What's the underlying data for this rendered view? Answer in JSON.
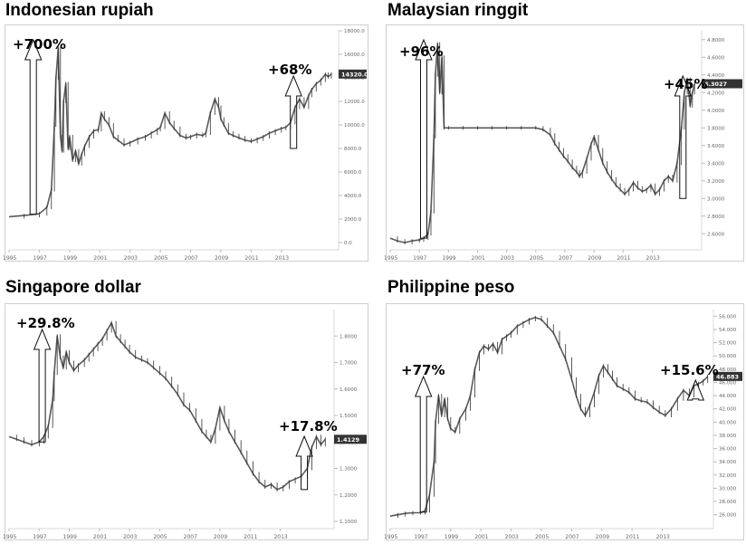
{
  "chart_data": [
    {
      "type": "line",
      "title": "Indonesian rupiah",
      "x_ticks": [
        "1995",
        "1997",
        "1999",
        "2001",
        "2003",
        "2005",
        "2007",
        "2009",
        "2011",
        "2013"
      ],
      "y_ticks": [
        "0.0",
        "2000.0",
        "4000.0",
        "6000.0",
        "8000.0",
        "10000.0",
        "12000.0",
        "14000.0",
        "16000.0",
        "18000.0"
      ],
      "ylim": [
        0,
        18000
      ],
      "last_value_label": "14320.0",
      "annotations": [
        "+700%",
        "+68%"
      ],
      "series": [
        {
          "x": [
            1995.0,
            1996.0,
            1997.0,
            1997.5,
            1997.8,
            1998.0,
            1998.1,
            1998.25,
            1998.4,
            1998.5,
            1998.6,
            1998.75,
            1998.9,
            1999.0,
            1999.2,
            1999.4,
            1999.6,
            1999.8,
            2000.0,
            2000.3,
            2000.6,
            2000.9,
            2001.1,
            2001.3,
            2001.6,
            2001.9,
            2002.2,
            2002.6,
            2003.0,
            2003.5,
            2004.0,
            2004.4,
            2004.8,
            2005.0,
            2005.3,
            2005.6,
            2005.9,
            2006.3,
            2006.7,
            2007.0,
            2007.4,
            2007.8,
            2008.0,
            2008.3,
            2008.6,
            2008.85,
            2009.0,
            2009.2,
            2009.5,
            2009.8,
            2010.2,
            2010.6,
            2011.0,
            2011.4,
            2011.8,
            2012.2,
            2012.6,
            2013.0,
            2013.3,
            2013.6,
            2013.9,
            2014.2,
            2014.5,
            2014.8,
            2015.0,
            2015.3,
            2015.6,
            2015.9,
            2016.1,
            2016.3
          ],
          "y": [
            2200,
            2300,
            2450,
            3000,
            4500,
            10000,
            14000,
            16500,
            9000,
            7800,
            12000,
            13500,
            8000,
            9000,
            7000,
            7800,
            6700,
            7500,
            8200,
            9000,
            9500,
            9600,
            11000,
            10500,
            10000,
            9000,
            8700,
            8300,
            8500,
            8800,
            9000,
            9300,
            9600,
            9800,
            11000,
            10200,
            9700,
            9100,
            8900,
            9000,
            9200,
            9100,
            9300,
            11000,
            12200,
            11500,
            10500,
            10000,
            9300,
            9100,
            8900,
            8700,
            8600,
            8800,
            9000,
            9300,
            9500,
            9700,
            9800,
            10200,
            11500,
            12200,
            11500,
            12500,
            13000,
            13500,
            13800,
            14300,
            14100,
            14320
          ]
        }
      ]
    },
    {
      "type": "line",
      "title": "Malaysian ringgit",
      "x_ticks": [
        "1995",
        "1997",
        "1999",
        "2001",
        "2003",
        "2005",
        "2007",
        "2009",
        "2011",
        "2013"
      ],
      "y_ticks": [
        "2.6000",
        "2.8000",
        "3.0000",
        "3.2000",
        "3.4000",
        "3.6000",
        "3.8000",
        "4.0000",
        "4.2000",
        "4.4000",
        "4.6000",
        "4.8000"
      ],
      "ylim": [
        2.5,
        4.9
      ],
      "last_value_label": "4.3027",
      "annotations": [
        "+96%",
        "+45%"
      ],
      "series": [
        {
          "x": [
            1995.0,
            1995.5,
            1996.0,
            1996.5,
            1997.0,
            1997.3,
            1997.6,
            1997.8,
            1998.0,
            1998.1,
            1998.25,
            1998.4,
            1998.55,
            1998.7,
            1999.0,
            2000.0,
            2001.0,
            2002.0,
            2003.0,
            2004.0,
            2005.0,
            2005.5,
            2006.0,
            2006.3,
            2006.6,
            2006.9,
            2007.2,
            2007.5,
            2007.8,
            2008.0,
            2008.2,
            2008.5,
            2008.8,
            2009.0,
            2009.3,
            2009.6,
            2009.9,
            2010.2,
            2010.5,
            2010.8,
            2011.1,
            2011.4,
            2011.7,
            2012.0,
            2012.3,
            2012.6,
            2012.9,
            2013.2,
            2013.5,
            2013.8,
            2014.1,
            2014.4,
            2014.7,
            2015.0,
            2015.2,
            2015.4,
            2015.6,
            2015.75,
            2015.9
          ],
          "y": [
            2.55,
            2.52,
            2.5,
            2.52,
            2.53,
            2.55,
            2.6,
            2.85,
            3.7,
            4.4,
            4.75,
            4.2,
            4.6,
            3.8,
            3.8,
            3.8,
            3.8,
            3.8,
            3.8,
            3.8,
            3.8,
            3.78,
            3.72,
            3.62,
            3.55,
            3.48,
            3.42,
            3.35,
            3.3,
            3.25,
            3.3,
            3.45,
            3.62,
            3.7,
            3.55,
            3.4,
            3.3,
            3.22,
            3.15,
            3.1,
            3.05,
            3.1,
            3.18,
            3.12,
            3.08,
            3.1,
            3.15,
            3.05,
            3.1,
            3.2,
            3.25,
            3.2,
            3.4,
            3.8,
            4.2,
            4.35,
            4.05,
            4.2,
            4.3
          ]
        }
      ]
    },
    {
      "type": "line",
      "title": "Singapore dollar",
      "x_ticks": [
        "1995",
        "1997",
        "1999",
        "2001",
        "2003",
        "2005",
        "2007",
        "2009",
        "2011",
        "2013"
      ],
      "y_ticks": [
        "1.1000",
        "1.2000",
        "1.3000",
        "1.4000",
        "1.5000",
        "1.6000",
        "1.7000",
        "1.8000"
      ],
      "ylim": [
        1.1,
        1.9
      ],
      "last_value_label": "1.4129",
      "annotations": [
        "+29.8%",
        "+17.8%"
      ],
      "series": [
        {
          "x": [
            1995.0,
            1995.5,
            1996.0,
            1996.5,
            1997.0,
            1997.3,
            1997.6,
            1997.9,
            1998.0,
            1998.2,
            1998.4,
            1998.6,
            1998.8,
            1999.0,
            1999.3,
            1999.6,
            2000.0,
            2000.3,
            2000.6,
            2000.9,
            2001.2,
            2001.5,
            2001.8,
            2002.1,
            2002.4,
            2002.7,
            2003.0,
            2003.4,
            2003.8,
            2004.2,
            2004.6,
            2005.0,
            2005.4,
            2005.8,
            2006.2,
            2006.6,
            2007.0,
            2007.4,
            2007.8,
            2008.1,
            2008.4,
            2008.7,
            2009.0,
            2009.3,
            2009.6,
            2010.0,
            2010.4,
            2010.8,
            2011.2,
            2011.6,
            2012.0,
            2012.4,
            2012.8,
            2013.2,
            2013.6,
            2014.0,
            2014.4,
            2014.8,
            2015.1,
            2015.4,
            2015.7,
            2016.0
          ],
          "y": [
            1.42,
            1.41,
            1.4,
            1.39,
            1.4,
            1.42,
            1.46,
            1.56,
            1.66,
            1.8,
            1.72,
            1.68,
            1.74,
            1.7,
            1.67,
            1.69,
            1.71,
            1.73,
            1.75,
            1.77,
            1.79,
            1.82,
            1.85,
            1.8,
            1.78,
            1.76,
            1.74,
            1.72,
            1.71,
            1.7,
            1.68,
            1.66,
            1.64,
            1.61,
            1.58,
            1.54,
            1.52,
            1.48,
            1.44,
            1.42,
            1.4,
            1.45,
            1.53,
            1.48,
            1.44,
            1.4,
            1.36,
            1.32,
            1.28,
            1.25,
            1.23,
            1.24,
            1.22,
            1.23,
            1.25,
            1.26,
            1.27,
            1.3,
            1.38,
            1.42,
            1.39,
            1.41
          ]
        }
      ]
    },
    {
      "type": "line",
      "title": "Philippine peso",
      "x_ticks": [
        "1995",
        "1997",
        "1999",
        "2001",
        "2003",
        "2005",
        "2007",
        "2009",
        "2011",
        "2013"
      ],
      "y_ticks": [
        "26.000",
        "28.000",
        "30.000",
        "32.000",
        "34.000",
        "36.000",
        "38.000",
        "40.000",
        "42.000",
        "44.000",
        "46.000",
        "48.000",
        "50.000",
        "52.000",
        "54.000",
        "56.000"
      ],
      "ylim": [
        25,
        57
      ],
      "last_value_label": "46.883",
      "annotations": [
        "+77%",
        "+15.6%"
      ],
      "series": [
        {
          "x": [
            1995.0,
            1995.5,
            1996.0,
            1996.5,
            1997.0,
            1997.3,
            1997.6,
            1997.9,
            1998.0,
            1998.2,
            1998.4,
            1998.6,
            1998.8,
            1999.0,
            1999.3,
            1999.6,
            2000.0,
            2000.3,
            2000.6,
            2000.9,
            2001.2,
            2001.5,
            2001.8,
            2002.1,
            2002.4,
            2002.7,
            2003.0,
            2003.4,
            2003.8,
            2004.2,
            2004.6,
            2005.0,
            2005.4,
            2005.8,
            2006.2,
            2006.6,
            2007.0,
            2007.3,
            2007.6,
            2007.9,
            2008.2,
            2008.5,
            2008.8,
            2009.1,
            2009.4,
            2009.7,
            2010.0,
            2010.4,
            2010.8,
            2011.2,
            2011.6,
            2012.0,
            2012.4,
            2012.8,
            2013.2,
            2013.6,
            2014.0,
            2014.4,
            2014.8,
            2015.1,
            2015.4,
            2015.7,
            2016.0
          ],
          "y": [
            25.8,
            26.0,
            26.2,
            26.3,
            26.3,
            26.6,
            29.0,
            34.0,
            40.0,
            44.0,
            41.0,
            43.5,
            40.5,
            39.0,
            38.5,
            40.5,
            42.0,
            44.0,
            48.0,
            50.5,
            51.5,
            51.0,
            51.8,
            50.5,
            52.5,
            53.0,
            53.5,
            54.5,
            55.0,
            55.5,
            55.8,
            55.5,
            54.5,
            53.5,
            51.5,
            49.5,
            46.5,
            44.0,
            42.0,
            41.0,
            42.5,
            44.5,
            47.0,
            48.5,
            47.5,
            46.5,
            45.5,
            45.0,
            44.5,
            43.5,
            43.2,
            43.0,
            42.2,
            41.5,
            41.0,
            42.0,
            43.5,
            44.8,
            44.0,
            45.5,
            45.8,
            46.2,
            46.9
          ]
        }
      ]
    }
  ]
}
